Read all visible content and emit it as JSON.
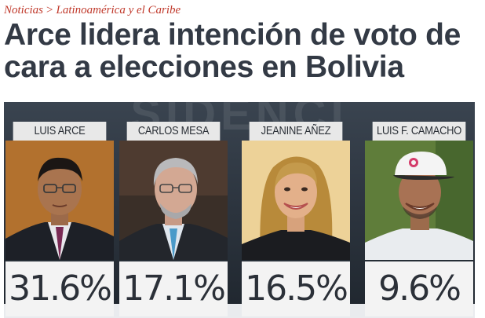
{
  "breadcrumb": {
    "section": "Noticias",
    "separator": ">",
    "subsection": "Latinoamérica y el Caribe"
  },
  "headline": "Arce lidera intención de voto de cara a elecciones en Bolivia",
  "graphic": {
    "background_text": "SIDENCI",
    "candidates": [
      {
        "name": "LUIS ARCE",
        "percent": "31.6%",
        "photo_icon": "portrait-luis-arce"
      },
      {
        "name": "CARLOS MESA",
        "percent": "17.1%",
        "photo_icon": "portrait-carlos-mesa"
      },
      {
        "name": "JEANINE AÑEZ",
        "percent": "16.5%",
        "photo_icon": "portrait-jeanine-anez"
      },
      {
        "name": "LUIS F. CAMACHO",
        "percent": "9.6%",
        "photo_icon": "portrait-luis-camacho"
      }
    ]
  },
  "colors": {
    "breadcrumb": "#c0392b",
    "headline": "#333a45",
    "graphic_bg": "#2c343e"
  }
}
